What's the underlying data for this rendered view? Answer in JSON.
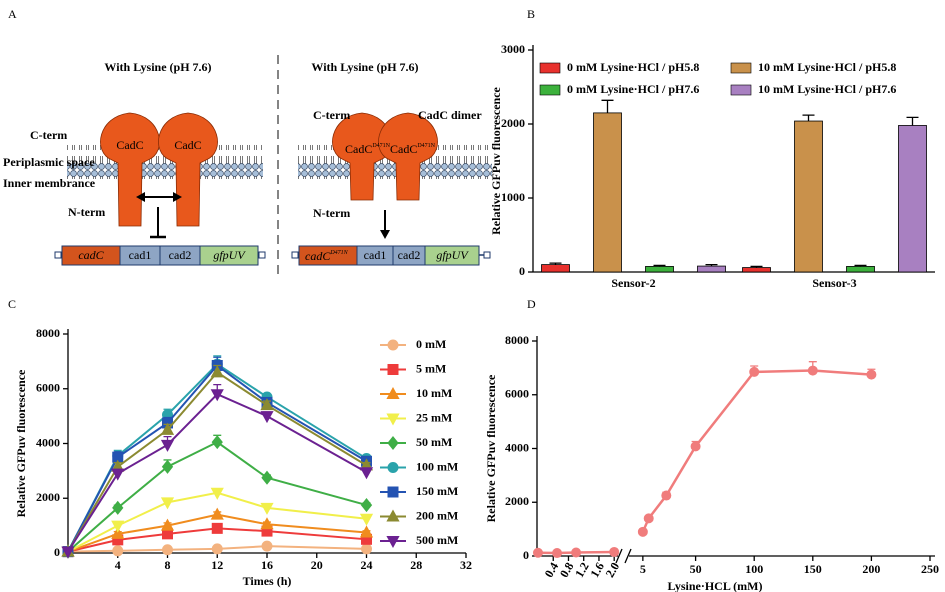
{
  "panel_labels": [
    "A",
    "B",
    "C",
    "D"
  ],
  "diagram": {
    "left": {
      "title": "With Lysine (pH 7.6)",
      "labels": [
        "C-term",
        "Periplasmic space",
        "Inner membrance",
        "N-term"
      ],
      "proteins": [
        "CadC",
        "CadC"
      ],
      "genes": [
        "cadC",
        "cad1",
        "cad2",
        "gfpUV"
      ]
    },
    "right": {
      "title": "With Lysine (pH 7.6)",
      "labels": [
        "C-term",
        "CadC dimer",
        "N-term"
      ],
      "proteins": [
        {
          "name": "CadC",
          "mutation": "D471N"
        },
        {
          "name": "CadC",
          "mutation": "D471N"
        }
      ],
      "genes": [
        {
          "name": "cadC",
          "mutation": "D471N"
        },
        "cad1",
        "cad2",
        "gfpUV"
      ]
    }
  },
  "chart_data": [
    {
      "type": "bar",
      "y_label": "Relative GFPuv fluorescence",
      "categories": [
        "Sensor-2",
        "Sensor-3"
      ],
      "ylim": [
        0,
        3000
      ],
      "yticks": [
        0,
        1000,
        2000,
        3000
      ],
      "legend": "top",
      "series": [
        {
          "name": "0 mM Lysine·HCl / pH5.8",
          "color": "#e8312d",
          "values": [
            100,
            60
          ],
          "errors": [
            20,
            15
          ]
        },
        {
          "name": "10 mM Lysine·HCl / pH5.8",
          "color": "#c9914b",
          "values": [
            2150,
            2040
          ],
          "errors": [
            170,
            80
          ]
        },
        {
          "name": "0 mM Lysine·HCl / pH7.6",
          "color": "#3cb13c",
          "values": [
            75,
            75
          ],
          "errors": [
            15,
            15
          ]
        },
        {
          "name": "10 mM Lysine·HCl / pH7.6",
          "color": "#a880c1",
          "values": [
            80,
            1980
          ],
          "errors": [
            20,
            110
          ]
        }
      ]
    },
    {
      "type": "line",
      "x_label": "Times (h)",
      "y_label": "Relative GFPuv fluorescence",
      "x": [
        0,
        4,
        8,
        12,
        16,
        24
      ],
      "xlim": [
        0,
        32
      ],
      "xticks": [
        4,
        8,
        12,
        16,
        20,
        24,
        28,
        32
      ],
      "ylim": [
        0,
        8000
      ],
      "yticks": [
        0,
        2000,
        4000,
        6000,
        8000
      ],
      "legend": "right",
      "series": [
        {
          "name": "0 mM",
          "color": "#f3b27f",
          "marker": "circle",
          "values": [
            50,
            80,
            120,
            150,
            250,
            150
          ],
          "errors": [
            20,
            30,
            30,
            40,
            60,
            40
          ]
        },
        {
          "name": "5 mM",
          "color": "#ee3b3b",
          "marker": "square",
          "values": [
            50,
            480,
            700,
            900,
            800,
            500
          ],
          "errors": [
            30,
            80,
            100,
            150,
            100,
            80
          ]
        },
        {
          "name": "10 mM",
          "color": "#f08c1e",
          "marker": "triangle-up",
          "values": [
            50,
            700,
            1000,
            1400,
            1050,
            750
          ],
          "errors": [
            30,
            80,
            100,
            100,
            80,
            60
          ]
        },
        {
          "name": "25 mM",
          "color": "#f1ef4a",
          "marker": "triangle-down",
          "values": [
            50,
            1000,
            1850,
            2200,
            1650,
            1250
          ],
          "errors": [
            30,
            80,
            100,
            150,
            100,
            80
          ]
        },
        {
          "name": "50 mM",
          "color": "#3fae46",
          "marker": "diamond",
          "values": [
            50,
            1650,
            3150,
            4050,
            2750,
            1750
          ],
          "errors": [
            30,
            100,
            250,
            250,
            100,
            80
          ]
        },
        {
          "name": "100 mM",
          "color": "#2aa3ab",
          "marker": "circle",
          "values": [
            50,
            3550,
            5050,
            6900,
            5700,
            3450
          ],
          "errors": [
            30,
            200,
            200,
            300,
            100,
            100
          ]
        },
        {
          "name": "150 mM",
          "color": "#2453b2",
          "marker": "square",
          "values": [
            50,
            3500,
            4750,
            6850,
            5500,
            3350
          ],
          "errors": [
            30,
            200,
            200,
            300,
            150,
            100
          ]
        },
        {
          "name": "200 mM",
          "color": "#8b8a31",
          "marker": "triangle-up",
          "values": [
            50,
            3150,
            4500,
            6600,
            5400,
            3200
          ],
          "errors": [
            30,
            150,
            200,
            250,
            150,
            100
          ]
        },
        {
          "name": "500 mM",
          "color": "#6b2191",
          "marker": "triangle-down",
          "values": [
            50,
            2900,
            3950,
            5800,
            5000,
            2950
          ],
          "errors": [
            30,
            150,
            300,
            350,
            150,
            100
          ]
        }
      ]
    },
    {
      "type": "broken-line",
      "x_label": "Lysine·HCL (mM)",
      "y_label": "Relative GFPuv fluorescence",
      "xlim_segments": [
        [
          0,
          2.1
        ],
        [
          0,
          250
        ]
      ],
      "xticks_segments": [
        [
          0.4,
          0.8,
          1.2,
          1.6,
          {
            "value": 2,
            "label": "2.0"
          }
        ],
        [
          5,
          50,
          100,
          150,
          200,
          250
        ]
      ],
      "ylim": [
        0,
        8000
      ],
      "yticks": [
        0,
        2000,
        4000,
        6000,
        8000
      ],
      "series": [
        {
          "color": "#f07c7c",
          "marker": "circle",
          "segment": 0,
          "x": [
            0,
            0.5,
            1,
            2
          ],
          "values": [
            120,
            110,
            130,
            150
          ],
          "errors": [
            30,
            20,
            20,
            20
          ]
        },
        {
          "color": "#f07c7c",
          "marker": "circle",
          "segment": 1,
          "x": [
            5,
            10,
            25,
            50,
            100,
            150,
            200
          ],
          "values": [
            900,
            1400,
            2250,
            4080,
            6850,
            6900,
            6750
          ],
          "errors": [
            60,
            80,
            120,
            180,
            220,
            330,
            200
          ]
        }
      ]
    }
  ]
}
